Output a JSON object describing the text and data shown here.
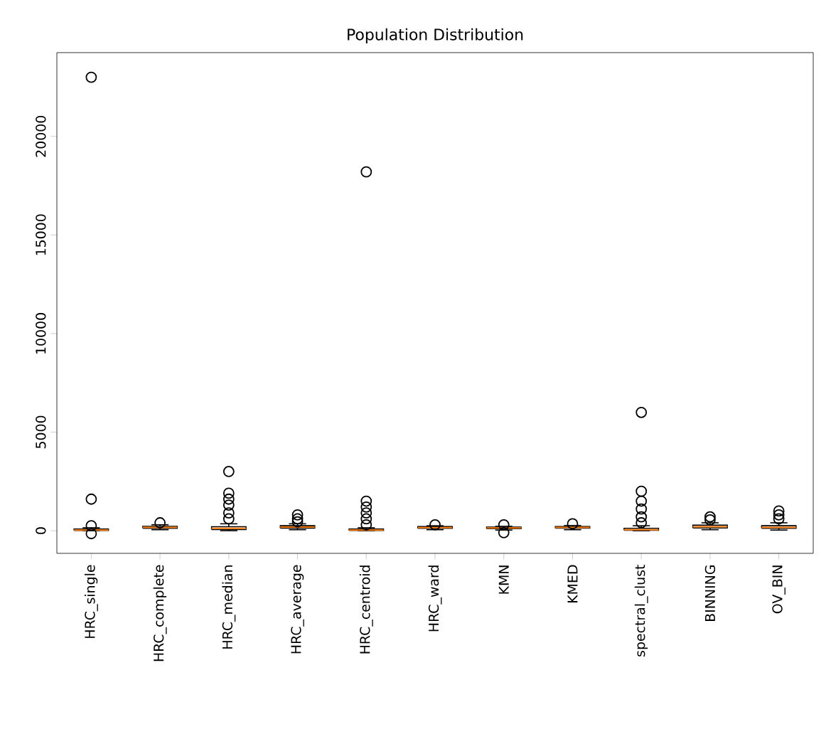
{
  "chart_data": {
    "type": "box",
    "title": "Population Distribution",
    "categories": [
      "HRC_single",
      "HRC_complete",
      "HRC_median",
      "HRC_average",
      "HRC_centroid",
      "HRC_ward",
      "KMN",
      "KMED",
      "spectral_clust",
      "BINNING",
      "OV_BIN"
    ],
    "ylim": [
      -1150,
      24250
    ],
    "yticks": [
      0,
      5000,
      10000,
      15000,
      20000
    ],
    "color": "#000000",
    "boxes": [
      {
        "low": 0,
        "q1": 10,
        "median": 30,
        "q3": 80,
        "high": 150,
        "outliers": [
          -150,
          250,
          1600,
          23000
        ]
      },
      {
        "low": 50,
        "q1": 120,
        "median": 170,
        "q3": 220,
        "high": 300,
        "outliers": [
          400
        ]
      },
      {
        "low": 0,
        "q1": 60,
        "median": 120,
        "q3": 200,
        "high": 350,
        "outliers": [
          600,
          900,
          1300,
          1600,
          1900,
          3000
        ]
      },
      {
        "low": 50,
        "q1": 130,
        "median": 180,
        "q3": 250,
        "high": 350,
        "outliers": [
          450,
          600,
          800
        ]
      },
      {
        "low": 0,
        "q1": 10,
        "median": 30,
        "q3": 80,
        "high": 150,
        "outliers": [
          300,
          600,
          900,
          1200,
          1500,
          18200
        ]
      },
      {
        "low": 50,
        "q1": 120,
        "median": 160,
        "q3": 210,
        "high": 250,
        "outliers": [
          300
        ]
      },
      {
        "low": 30,
        "q1": 100,
        "median": 140,
        "q3": 180,
        "high": 220,
        "outliers": [
          -100,
          300
        ]
      },
      {
        "low": 50,
        "q1": 130,
        "median": 170,
        "q3": 210,
        "high": 260,
        "outliers": [
          350
        ]
      },
      {
        "low": 0,
        "q1": 20,
        "median": 50,
        "q3": 120,
        "high": 250,
        "outliers": [
          400,
          700,
          1100,
          1500,
          2000,
          6000
        ]
      },
      {
        "low": 50,
        "q1": 140,
        "median": 200,
        "q3": 280,
        "high": 400,
        "outliers": [
          550,
          700
        ]
      },
      {
        "low": 30,
        "q1": 120,
        "median": 170,
        "q3": 250,
        "high": 400,
        "outliers": [
          600,
          800,
          1000
        ]
      }
    ]
  }
}
